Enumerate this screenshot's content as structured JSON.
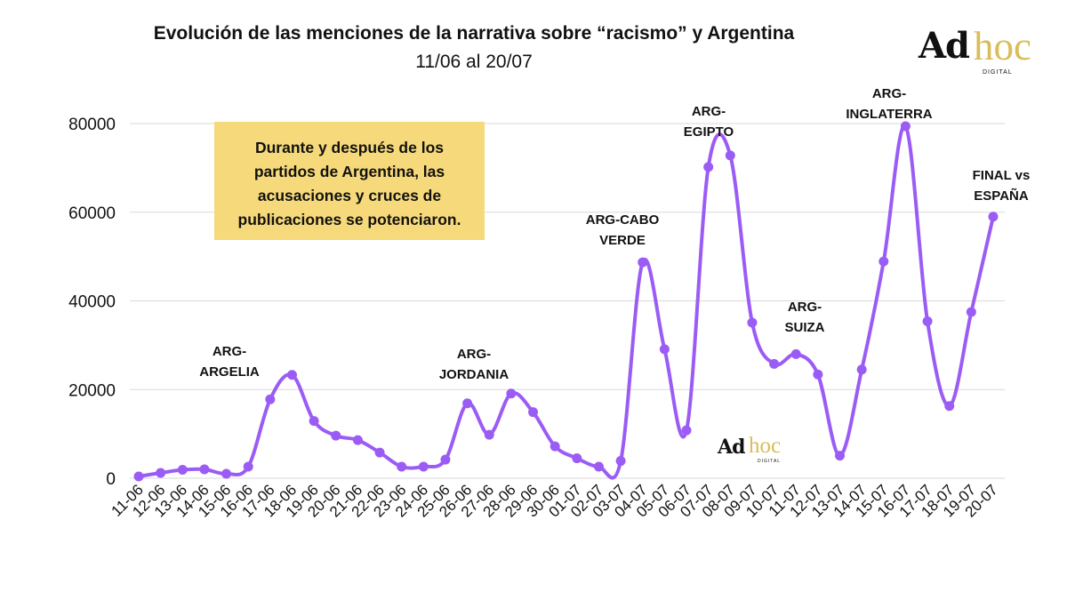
{
  "chart_data": {
    "type": "line",
    "title": "Evolución de las menciones de la narrativa sobre “racismo” y Argentina",
    "subtitle": "11/06 al 20/07",
    "categories": [
      "11-06",
      "12-06",
      "13-06",
      "14-06",
      "15-06",
      "16-06",
      "17-06",
      "18-06",
      "19-06",
      "20-06",
      "21-06",
      "22-06",
      "23-06",
      "24-06",
      "25-06",
      "26-06",
      "27-06",
      "28-06",
      "29-06",
      "30-06",
      "01-07",
      "02-07",
      "03-07",
      "04-07",
      "05-07",
      "06-07",
      "07-07",
      "08-07",
      "09-07",
      "10-07",
      "11-07",
      "12-07",
      "13-07",
      "14-07",
      "15-07",
      "16-07",
      "17-07",
      "18-07",
      "19-07",
      "20-07"
    ],
    "series": [
      {
        "values": [
          400,
          1200,
          1900,
          2000,
          1000,
          2600,
          17800,
          23300,
          12900,
          9600,
          8600,
          5800,
          2600,
          2600,
          4200,
          16900,
          9800,
          19100,
          14900,
          7200,
          4500,
          2600,
          3900,
          48700,
          29100,
          10800,
          70200,
          72800,
          35100,
          25800,
          28000,
          23400,
          5100,
          24500,
          48900,
          79400,
          35400,
          16300,
          37500,
          59000
        ]
      }
    ],
    "ylim": [
      0,
      80000
    ],
    "yticks": [
      "0",
      "20000",
      "40000",
      "60000",
      "80000"
    ],
    "grid": true,
    "line_color": "#9b5cf5",
    "annotations": [
      {
        "lines": [
          "ARG-",
          "ARGELIA"
        ]
      },
      {
        "lines": [
          "ARG-",
          "JORDANIA"
        ]
      },
      {
        "lines": [
          "ARG-CABO",
          "VERDE"
        ]
      },
      {
        "lines": [
          "ARG-",
          "EGIPTO"
        ]
      },
      {
        "lines": [
          "ARG-",
          "SUIZA"
        ]
      },
      {
        "lines": [
          "ARG-",
          "INGLATERRA"
        ]
      },
      {
        "lines": [
          "FINAL vs",
          "ESPAÑA"
        ]
      }
    ],
    "note_lines": [
      "Durante y después de los",
      "partidos de Argentina, las",
      "acusaciones y cruces de",
      "publicaciones se potenciaron."
    ]
  },
  "logo": {
    "main": "Ad",
    "accent": "hoc",
    "sub": "DIGITAL",
    "accent_color": "#d9bd5a"
  }
}
